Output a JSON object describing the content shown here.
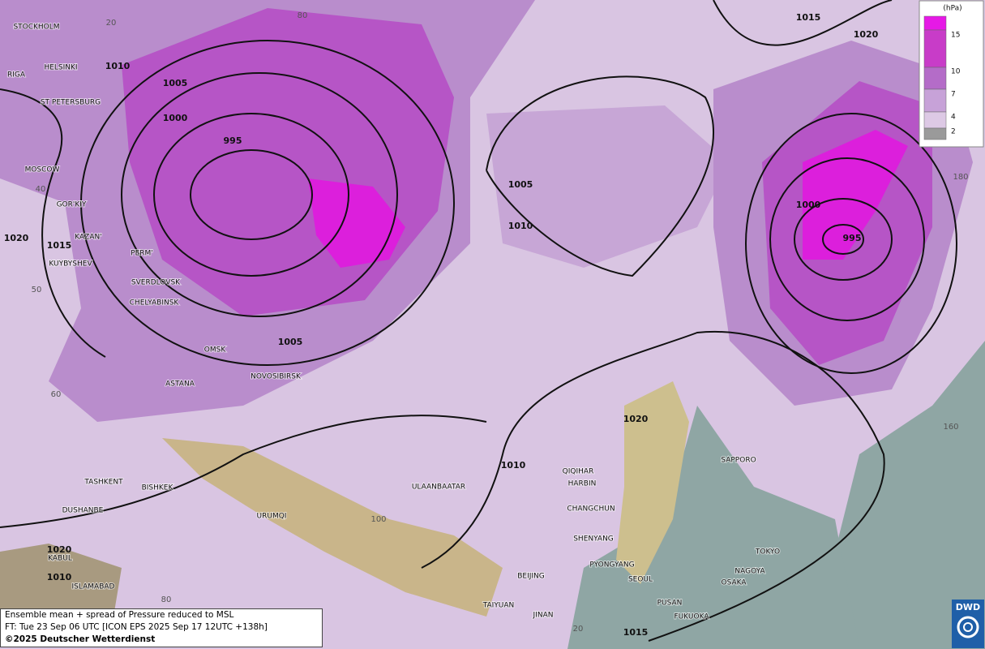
{
  "legend": {
    "unit": "(hPa)",
    "levels": [
      15,
      10,
      7,
      4,
      2
    ]
  },
  "isobars": [
    1015,
    1020,
    1010,
    1005,
    1000,
    995,
    1005,
    1010,
    1000,
    995,
    1020,
    1015,
    1005,
    1020,
    1010,
    1020,
    1010,
    1015
  ],
  "cities": [
    "STOCKHOLM",
    "HELSINKI",
    "RIGA",
    "ST PETERSBURG",
    "MOSCOW",
    "GOR'KIY",
    "KAZAN'",
    "KUYBYSHEV",
    "PERM'",
    "SVERDLOVSK",
    "CHELYABINSK",
    "OMSK",
    "ASTANA",
    "NOVOSIBIRSK",
    "TASHKENT",
    "BISHKEK",
    "DUSHANBE",
    "URUMQI",
    "KABUL",
    "ISLAMABAD",
    "ULAANBAATAR",
    "QIQIHAR",
    "HARBIN",
    "CHANGCHUN",
    "SHENYANG",
    "PYONGYANG",
    "SEOUL",
    "BEIJING",
    "TAIYUAN",
    "JINAN",
    "PUSAN",
    "FUKUOKA",
    "SAPPORO",
    "TOKYO",
    "NAGOYA",
    "OSAKA"
  ],
  "grid_labels": [
    20,
    80,
    40,
    50,
    60,
    100,
    180,
    160,
    80,
    20
  ],
  "caption": [
    "Ensemble mean + spread of Pressure reduced to MSL",
    "FT: Tue 23 Sep 06 UTC [ICON EPS 2025 Sep 17 12UTC +138h]",
    "©2025 Deutscher Wetterdienst"
  ],
  "logo": "DWD"
}
